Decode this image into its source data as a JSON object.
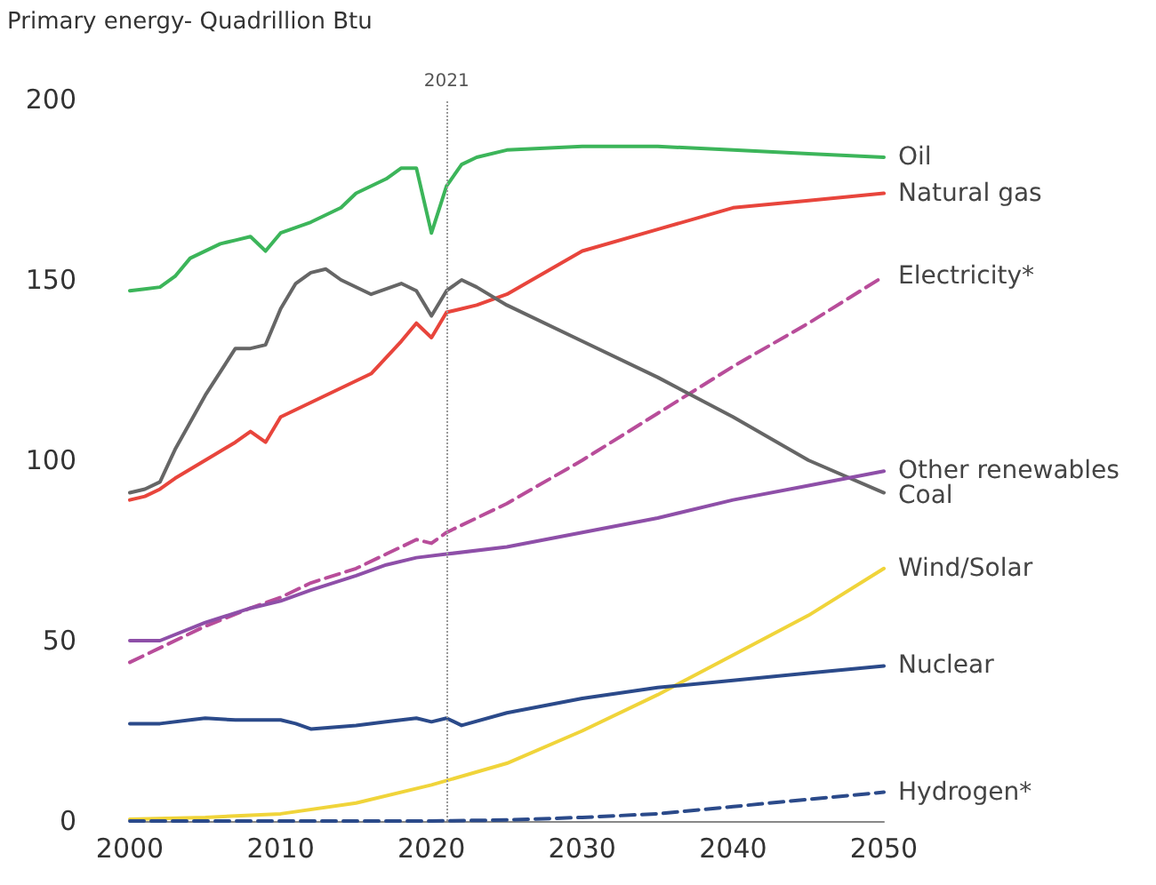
{
  "chart_data": {
    "type": "line",
    "ylabel": "Primary energy- Quadrillion Btu",
    "xlim": [
      2000,
      2050
    ],
    "xticks": [
      2000,
      2010,
      2020,
      2030,
      2040,
      2050
    ],
    "ylim": [
      0,
      200
    ],
    "yticks": [
      0,
      50,
      100,
      150,
      200
    ],
    "grid": false,
    "legend": false,
    "marker": "none",
    "ref_lines": [
      {
        "axis": "x",
        "value": 2021,
        "label": "2021",
        "color": "#999999",
        "line_style": "dotted"
      }
    ],
    "series": [
      {
        "name": "Oil",
        "color": "#3cb55a",
        "x": [
          2000,
          2001,
          2002,
          2003,
          2004,
          2006,
          2007,
          2008,
          2009,
          2010,
          2012,
          2014,
          2015,
          2017,
          2018,
          2019,
          2020,
          2021,
          2022,
          2023,
          2025,
          2030,
          2035,
          2040,
          2045,
          2050
        ],
        "values": [
          147,
          147.5,
          148,
          151,
          156,
          160,
          161,
          162,
          158,
          163,
          166,
          170,
          174,
          178,
          181,
          181,
          163,
          176,
          182,
          184,
          186,
          187,
          187,
          186,
          185,
          184
        ]
      },
      {
        "name": "Natural gas",
        "color": "#e8453c",
        "x": [
          2000,
          2001,
          2002,
          2003,
          2005,
          2007,
          2008,
          2009,
          2010,
          2012,
          2014,
          2016,
          2018,
          2019,
          2020,
          2021,
          2022,
          2023,
          2025,
          2030,
          2035,
          2040,
          2045,
          2050
        ],
        "values": [
          89,
          90,
          92,
          95,
          100,
          105,
          108,
          105,
          112,
          116,
          120,
          124,
          133,
          138,
          134,
          141,
          142,
          143,
          146,
          158,
          164,
          170,
          172,
          174
        ]
      },
      {
        "name": "Electricity*",
        "color": "#b84d9a",
        "line_style": "dashed",
        "x": [
          2000,
          2002,
          2005,
          2008,
          2010,
          2012,
          2015,
          2017,
          2019,
          2020,
          2021,
          2025,
          2030,
          2035,
          2040,
          2045,
          2050
        ],
        "values": [
          44,
          48,
          54,
          59,
          62,
          66,
          70,
          74,
          78,
          77,
          80,
          88,
          100,
          113,
          126,
          138,
          151
        ]
      },
      {
        "name": "Coal",
        "color": "#666666",
        "x": [
          2000,
          2001,
          2002,
          2003,
          2005,
          2007,
          2008,
          2009,
          2010,
          2011,
          2012,
          2013,
          2014,
          2016,
          2018,
          2019,
          2020,
          2021,
          2022,
          2023,
          2025,
          2030,
          2035,
          2040,
          2045,
          2050
        ],
        "values": [
          91,
          92,
          94,
          103,
          118,
          131,
          131,
          132,
          142,
          149,
          152,
          153,
          150,
          146,
          149,
          147,
          140,
          147,
          150,
          148,
          143,
          133,
          123,
          112,
          100,
          91
        ]
      },
      {
        "name": "Other renewables",
        "color": "#8e4fa8",
        "x": [
          2000,
          2002,
          2005,
          2008,
          2010,
          2012,
          2015,
          2017,
          2019,
          2021,
          2025,
          2030,
          2035,
          2040,
          2045,
          2050
        ],
        "values": [
          50,
          50,
          55,
          59,
          61,
          64,
          68,
          71,
          73,
          74,
          76,
          80,
          84,
          89,
          93,
          97
        ]
      },
      {
        "name": "Wind/Solar",
        "color": "#f0d43a",
        "x": [
          2000,
          2005,
          2010,
          2015,
          2020,
          2025,
          2030,
          2035,
          2040,
          2045,
          2050
        ],
        "values": [
          0.5,
          1,
          2,
          5,
          10,
          16,
          25,
          35,
          46,
          57,
          70
        ]
      },
      {
        "name": "Nuclear",
        "color": "#2b4a8a",
        "x": [
          2000,
          2002,
          2004,
          2005,
          2007,
          2010,
          2011,
          2012,
          2015,
          2017,
          2019,
          2020,
          2021,
          2022,
          2025,
          2030,
          2035,
          2040,
          2045,
          2050
        ],
        "values": [
          27,
          27,
          28,
          28.5,
          28,
          28,
          27,
          25.5,
          26.5,
          27.5,
          28.5,
          27.5,
          28.5,
          26.5,
          30,
          34,
          37,
          39,
          41,
          43
        ]
      },
      {
        "name": "Hydrogen*",
        "color": "#2b4a8a",
        "line_style": "dashed",
        "x": [
          2000,
          2010,
          2020,
          2025,
          2030,
          2035,
          2040,
          2045,
          2050
        ],
        "values": [
          0,
          0,
          0,
          0.3,
          1,
          2,
          4,
          6,
          8
        ]
      }
    ]
  }
}
